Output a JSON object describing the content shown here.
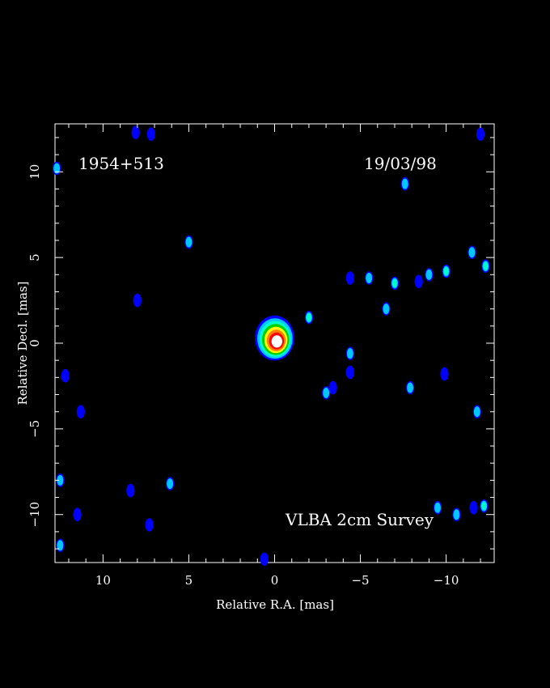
{
  "chart_data": {
    "type": "heatmap",
    "source_name": "1954+513",
    "epoch": "19/03/98",
    "survey": "VLBA 2cm Survey",
    "xlabel": "Relative R.A. [mas]",
    "ylabel": "Relative Decl. [mas]",
    "xlim": [
      12.8,
      -12.8
    ],
    "ylim": [
      -12.8,
      12.8
    ],
    "x_ticks": [
      10,
      5,
      0,
      -5,
      -10
    ],
    "y_ticks": [
      10,
      5,
      0,
      -5,
      -10
    ],
    "x_tick_labels": [
      "10",
      "5",
      "0",
      "−5",
      "−10"
    ],
    "y_tick_labels": [
      "10",
      "5",
      "0",
      "−5",
      "−10"
    ],
    "colormap": [
      "#0000ff",
      "#00c8ff",
      "#00ffc8",
      "#00d000",
      "#ffff00",
      "#ff8000",
      "#ff0000",
      "#ffffff"
    ],
    "emission": [
      {
        "x": 0.0,
        "y": 0.3,
        "level": 8,
        "note": "core"
      },
      {
        "x": -2.0,
        "y": 1.5,
        "level": 3
      },
      {
        "x": -5.5,
        "y": 3.8,
        "level": 2
      },
      {
        "x": -7.0,
        "y": 3.5,
        "level": 3
      },
      {
        "x": -6.5,
        "y": 2.0,
        "level": 2
      },
      {
        "x": -10.0,
        "y": 4.2,
        "level": 3
      },
      {
        "x": -11.5,
        "y": 5.3,
        "level": 2
      },
      {
        "x": -12.3,
        "y": 4.5,
        "level": 3
      },
      {
        "x": -9.0,
        "y": 4.0,
        "level": 2
      },
      {
        "x": -4.4,
        "y": 3.8,
        "level": 1
      },
      {
        "x": -8.4,
        "y": 3.6,
        "level": 1
      },
      {
        "x": -7.6,
        "y": 9.3,
        "level": 2
      },
      {
        "x": -4.4,
        "y": -0.6,
        "level": 2
      },
      {
        "x": -4.4,
        "y": -1.7,
        "level": 1
      },
      {
        "x": -3.0,
        "y": -2.9,
        "level": 2
      },
      {
        "x": -3.4,
        "y": -2.6,
        "level": 1
      },
      {
        "x": -7.9,
        "y": -2.6,
        "level": 2
      },
      {
        "x": -9.9,
        "y": -1.8,
        "level": 1
      },
      {
        "x": -11.8,
        "y": -4.0,
        "level": 2
      },
      {
        "x": -9.5,
        "y": -9.6,
        "level": 2
      },
      {
        "x": -10.6,
        "y": -10.0,
        "level": 2
      },
      {
        "x": -12.2,
        "y": -9.5,
        "level": 3
      },
      {
        "x": 5.0,
        "y": 5.9,
        "level": 2
      },
      {
        "x": 6.1,
        "y": -8.2,
        "level": 2
      },
      {
        "x": 12.2,
        "y": -1.9,
        "level": 1
      },
      {
        "x": 12.7,
        "y": 10.2,
        "level": 2
      },
      {
        "x": 12.5,
        "y": -8.0,
        "level": 2
      },
      {
        "x": 12.5,
        "y": -11.8,
        "level": 2
      },
      {
        "x": 8.1,
        "y": 12.3,
        "level": 1
      },
      {
        "x": 7.2,
        "y": 12.2,
        "level": 1
      },
      {
        "x": 11.5,
        "y": -10.0,
        "level": 1
      },
      {
        "x": 7.3,
        "y": -10.6,
        "level": 1
      },
      {
        "x": 8.4,
        "y": -8.6,
        "level": 1
      },
      {
        "x": 8.0,
        "y": 2.5,
        "level": 1
      },
      {
        "x": 11.3,
        "y": -4.0,
        "level": 1
      },
      {
        "x": -12.0,
        "y": 12.2,
        "level": 1
      },
      {
        "x": -11.6,
        "y": -9.6,
        "level": 1
      },
      {
        "x": 0.6,
        "y": -12.6,
        "level": 1
      }
    ]
  }
}
